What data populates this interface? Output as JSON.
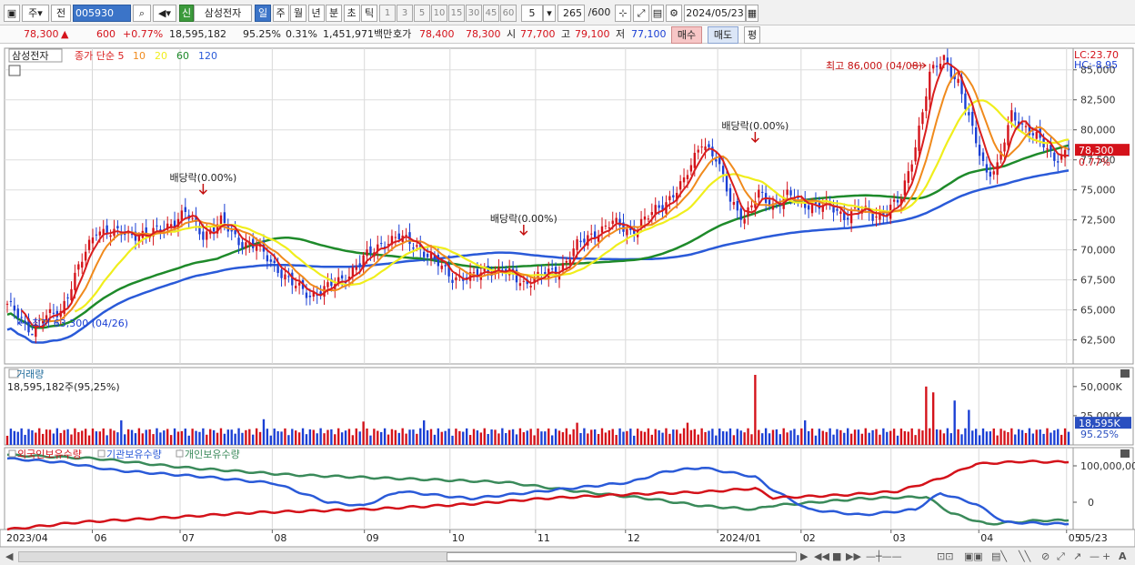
{
  "toolbar": {
    "period_sel": "주",
    "prev_sel": "전",
    "code": "005930",
    "name": "삼성전자",
    "badge": "신",
    "periods": [
      "일",
      "주",
      "월",
      "년",
      "분",
      "초",
      "틱"
    ],
    "active_period": "일",
    "steps": [
      "1",
      "3",
      "5",
      "10",
      "15",
      "30",
      "45",
      "60"
    ],
    "step_value": "5",
    "count": "265",
    "count_max": "/600",
    "date": "2024/05/23"
  },
  "quote": {
    "price": "78,300",
    "arrow": "▲",
    "change": "600",
    "pct": "+0.77%",
    "volume": "18,595,182",
    "vol_ratio": "95.25%",
    "turnover_pct": "0.31%",
    "amount": "1,451,971백만",
    "hoga_label": "호가",
    "hoga1": "78,400",
    "hoga2": "78,300",
    "open_label": "시",
    "open": "77,700",
    "high_label": "고",
    "high": "79,100",
    "low_label": "저",
    "low": "77,100",
    "buy": "매수",
    "sell": "매도",
    "avg": "평"
  },
  "colors": {
    "up": "#d4121a",
    "down": "#1a3fd4",
    "ma5": "#d91e1e",
    "ma10": "#f08a1c",
    "ma20": "#f0ee1c",
    "ma60": "#1e8a2a",
    "ma120": "#2a5ad8",
    "foreign": "#d4121a",
    "inst": "#2a5ad8",
    "indiv": "#3a8a5a"
  },
  "chart_data": [
    {
      "type": "candlestick",
      "title": "삼성전자",
      "legend": [
        {
          "name": "종가 단순 5",
          "color": "#d91e1e"
        },
        {
          "name": "10",
          "color": "#f08a1c"
        },
        {
          "name": "20",
          "color": "#f0ee1c"
        },
        {
          "name": "60",
          "color": "#1e8a2a"
        },
        {
          "name": "120",
          "color": "#2a5ad8"
        }
      ],
      "y_ticks": [
        62500,
        65000,
        67500,
        70000,
        72500,
        75000,
        77500,
        80000,
        82500,
        85000
      ],
      "y_labels": [
        "62,500",
        "65,000",
        "67,500",
        "70,000",
        "72,500",
        "75,000",
        "77,500",
        "80,000",
        "82,500",
        "85,000"
      ],
      "ylim": [
        60500,
        86800
      ],
      "lc": "LC:23.70",
      "hc": "HC:-8.95",
      "last_price_label": "78,300",
      "last_pct_label": "0.77%",
      "annotations": {
        "high": "최고 86,000 (04/08)",
        "low": "최저 63,300 (04/26)",
        "div1": "배당락(0.00%)",
        "div2": "배당락(0.00%)",
        "div3": "배당락(0.00%)"
      },
      "x_labels": [
        "2023/04",
        "06",
        "07",
        "08",
        "09",
        "10",
        "11",
        "12",
        "2024/01",
        "02",
        "03",
        "04",
        "05",
        "05/23"
      ],
      "closes_anchors": [
        [
          0,
          65300
        ],
        [
          3,
          64600
        ],
        [
          7,
          63300
        ],
        [
          10,
          64200
        ],
        [
          15,
          65000
        ],
        [
          20,
          68400
        ],
        [
          25,
          71800
        ],
        [
          30,
          71300
        ],
        [
          35,
          71400
        ],
        [
          40,
          71200
        ],
        [
          45,
          72100
        ],
        [
          50,
          73000
        ],
        [
          55,
          71300
        ],
        [
          60,
          72300
        ],
        [
          65,
          70800
        ],
        [
          70,
          70200
        ],
        [
          75,
          68800
        ],
        [
          80,
          67100
        ],
        [
          85,
          66300
        ],
        [
          90,
          66800
        ],
        [
          95,
          67800
        ],
        [
          100,
          69200
        ],
        [
          105,
          70600
        ],
        [
          110,
          71000
        ],
        [
          115,
          70400
        ],
        [
          120,
          69000
        ],
        [
          125,
          67800
        ],
        [
          130,
          67600
        ],
        [
          135,
          68500
        ],
        [
          140,
          68100
        ],
        [
          145,
          67300
        ],
        [
          150,
          67800
        ],
        [
          155,
          68400
        ],
        [
          160,
          70300
        ],
        [
          165,
          71500
        ],
        [
          170,
          72200
        ],
        [
          175,
          71600
        ],
        [
          180,
          72700
        ],
        [
          185,
          74100
        ],
        [
          190,
          75600
        ],
        [
          195,
          79200
        ],
        [
          199,
          77500
        ],
        [
          203,
          74200
        ],
        [
          207,
          72700
        ],
        [
          211,
          74600
        ],
        [
          215,
          73800
        ],
        [
          219,
          74500
        ],
        [
          223,
          73900
        ],
        [
          227,
          73800
        ],
        [
          231,
          73500
        ],
        [
          235,
          72900
        ],
        [
          239,
          73400
        ],
        [
          243,
          72800
        ],
        [
          247,
          73300
        ],
        [
          251,
          74200
        ],
        [
          255,
          78800
        ],
        [
          259,
          84500
        ],
        [
          263,
          86000
        ],
        [
          267,
          84000
        ],
        [
          271,
          79800
        ],
        [
          275,
          76500
        ],
        [
          278,
          76900
        ],
        [
          282,
          81200
        ],
        [
          286,
          80300
        ],
        [
          290,
          79000
        ],
        [
          294,
          77700
        ],
        [
          298,
          78300
        ]
      ],
      "days": 299
    },
    {
      "type": "bar",
      "title": "거래량",
      "subtitle": "18,595,182주(95,25%)",
      "y_ticks": [
        25000000,
        50000000
      ],
      "y_labels": [
        "25,000K",
        "50,000K"
      ],
      "ylim": [
        0,
        60000000
      ],
      "last_label": "18,595K",
      "last_pct": "95.25%",
      "typical_volume": 13000000,
      "spikes": [
        [
          32,
          21000000
        ],
        [
          72,
          22000000
        ],
        [
          100,
          20000000
        ],
        [
          117,
          21000000
        ],
        [
          160,
          19000000
        ],
        [
          191,
          19000000
        ],
        [
          210,
          60000000
        ],
        [
          224,
          21000000
        ],
        [
          258,
          50000000
        ],
        [
          260,
          45000000
        ],
        [
          266,
          38000000
        ],
        [
          270,
          30000000
        ]
      ]
    },
    {
      "type": "line",
      "series": [
        {
          "name": "외국인보유수량",
          "color": "#d4121a"
        },
        {
          "name": "기관보유수량",
          "color": "#2a5ad8"
        },
        {
          "name": "개인보유수량",
          "color": "#3a8a5a"
        }
      ],
      "y_labels": [
        "100,000,00",
        "0"
      ],
      "foreign_anchors": [
        [
          0,
          -75
        ],
        [
          20,
          -55
        ],
        [
          40,
          -45
        ],
        [
          70,
          -28
        ],
        [
          100,
          -20
        ],
        [
          130,
          -5
        ],
        [
          150,
          10
        ],
        [
          175,
          22
        ],
        [
          195,
          28
        ],
        [
          210,
          38
        ],
        [
          215,
          12
        ],
        [
          235,
          20
        ],
        [
          250,
          30
        ],
        [
          262,
          65
        ],
        [
          272,
          105
        ],
        [
          285,
          112
        ],
        [
          298,
          110
        ]
      ],
      "inst_anchors": [
        [
          0,
          120
        ],
        [
          15,
          110
        ],
        [
          30,
          88
        ],
        [
          55,
          70
        ],
        [
          75,
          52
        ],
        [
          90,
          0
        ],
        [
          100,
          -10
        ],
        [
          110,
          30
        ],
        [
          130,
          10
        ],
        [
          150,
          30
        ],
        [
          175,
          55
        ],
        [
          185,
          85
        ],
        [
          195,
          95
        ],
        [
          210,
          70
        ],
        [
          214,
          40
        ],
        [
          225,
          -20
        ],
        [
          240,
          -35
        ],
        [
          255,
          -20
        ],
        [
          262,
          25
        ],
        [
          272,
          -5
        ],
        [
          280,
          -55
        ],
        [
          298,
          -60
        ]
      ],
      "indiv_anchors": [
        [
          0,
          130
        ],
        [
          25,
          120
        ],
        [
          50,
          95
        ],
        [
          80,
          75
        ],
        [
          110,
          65
        ],
        [
          140,
          55
        ],
        [
          160,
          30
        ],
        [
          180,
          10
        ],
        [
          195,
          -10
        ],
        [
          210,
          -20
        ],
        [
          214,
          -10
        ],
        [
          240,
          10
        ],
        [
          258,
          15
        ],
        [
          265,
          -30
        ],
        [
          275,
          -60
        ],
        [
          290,
          -50
        ],
        [
          298,
          -50
        ]
      ]
    }
  ]
}
